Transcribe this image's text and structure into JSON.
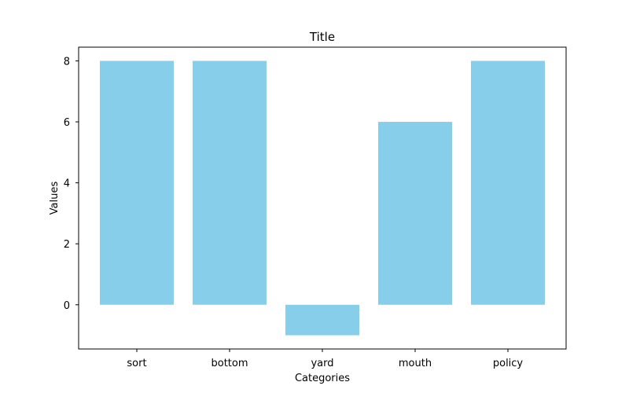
{
  "chart_data": {
    "type": "bar",
    "title": "Title",
    "xlabel": "Categories",
    "ylabel": "Values",
    "categories": [
      "sort",
      "bottom",
      "yard",
      "mouth",
      "policy"
    ],
    "values": [
      8,
      8,
      -1,
      6,
      8
    ],
    "ylim": [
      -1.45,
      8.45
    ],
    "yticks": [
      0,
      2,
      4,
      6,
      8
    ],
    "grid": false,
    "legend": "none",
    "bar_color": "#87CEEB"
  }
}
